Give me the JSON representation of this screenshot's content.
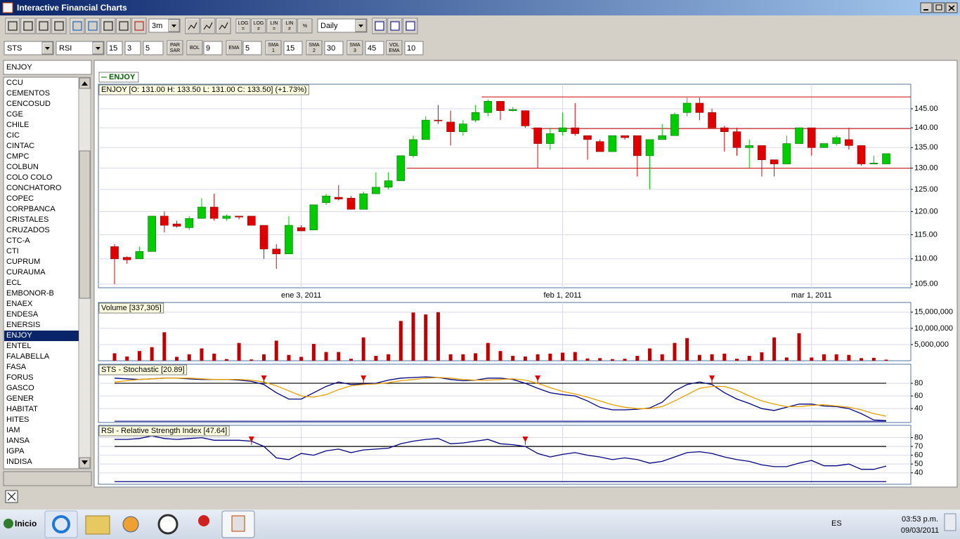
{
  "window": {
    "title": "Interactive Financial Charts"
  },
  "toolbar": {
    "period": "3m",
    "interval": "Daily",
    "scale_buttons": [
      [
        "LOG",
        "="
      ],
      [
        "LOG",
        "≠"
      ],
      [
        "LIN",
        "="
      ],
      [
        "LIN",
        "≠"
      ],
      [
        "%"
      ]
    ]
  },
  "indicator_bar": {
    "oscillator_1": "STS",
    "oscillator_2": "RSI",
    "sts_params": [
      "15",
      "3",
      "5"
    ],
    "par_sar": [
      "PAR",
      "SAR"
    ],
    "bol": [
      "BOL"
    ],
    "bol_param": "9",
    "ema": [
      "EMA"
    ],
    "ema_param": "5",
    "sma1": [
      "SMA",
      "1"
    ],
    "sma1_param": "15",
    "sma2": [
      "SMA",
      "2"
    ],
    "sma2_param": "30",
    "sma3": [
      "SMA",
      "3"
    ],
    "sma3_param": "45",
    "vol_ema": [
      "VOL",
      "EMA"
    ],
    "vol_ema_param": "10"
  },
  "symbol_list": {
    "selected": "ENJOY",
    "selected_index": 24,
    "items": [
      "CCU",
      "CEMENTOS",
      "CENCOSUD",
      "CGE",
      "CHILE",
      "CIC",
      "CINTAC",
      "CMPC",
      "COLBUN",
      "COLO COLO",
      "CONCHATORO",
      "COPEC",
      "CORPBANCA",
      "CRISTALES",
      "CRUZADOS",
      "CTC-A",
      "CTI",
      "CUPRUM",
      "CURAUMA",
      "ECL",
      "EMBONOR-B",
      "ENAEX",
      "ENDESA",
      "ENERSIS",
      "ENJOY",
      "ENTEL",
      "FALABELLA",
      "FASA",
      "FORUS",
      "GASCO",
      "GENER",
      "HABITAT",
      "HITES",
      "IAM",
      "IANSA",
      "IGPA",
      "INDISA"
    ]
  },
  "chart_data": [
    {
      "type": "candlestick",
      "legend": "ENJOY",
      "title": "ENJOY [O: 131.00  H: 133.50  L: 131.00  C: 133.50] (+1.73%)",
      "categories": [
        null,
        null,
        null,
        null,
        null,
        null,
        null,
        null,
        null,
        null,
        null,
        null,
        null,
        null,
        null,
        "ene 3, 2011",
        null,
        null,
        null,
        null,
        null,
        null,
        null,
        null,
        null,
        null,
        null,
        null,
        null,
        null,
        null,
        null,
        null,
        null,
        null,
        null,
        "feb 1, 2011",
        null,
        null,
        null,
        null,
        null,
        null,
        null,
        null,
        null,
        null,
        null,
        null,
        null,
        null,
        null,
        null,
        null,
        null,
        null,
        "mar 1, 2011",
        null,
        null,
        null,
        null,
        null,
        null
      ],
      "open": [
        112.5,
        110.3,
        110,
        111.5,
        119,
        117.3,
        116.5,
        118.5,
        121,
        118.5,
        119,
        119,
        117,
        112,
        111,
        116.5,
        116,
        122,
        123.2,
        123,
        120.5,
        124,
        125.5,
        127,
        133,
        137,
        142,
        141.5,
        139,
        142,
        144,
        147,
        144.5,
        144.5,
        140,
        136,
        139,
        140,
        138,
        136.5,
        134,
        138,
        138,
        133,
        137,
        138,
        144,
        146.5,
        144,
        140,
        139,
        135,
        135.5,
        132,
        131,
        136,
        140,
        135,
        136,
        137,
        135.5,
        131,
        131
      ],
      "high": [
        113,
        110.5,
        112.5,
        119,
        120,
        118,
        119,
        123,
        124,
        119.3,
        119,
        119,
        117,
        113,
        119,
        117,
        121.5,
        124,
        126,
        123.5,
        124.5,
        129,
        129,
        133,
        138,
        143,
        146,
        144.5,
        142,
        146,
        147.5,
        147,
        145.5,
        144.5,
        140,
        140,
        144,
        146.5,
        138,
        137,
        138,
        138,
        138,
        137,
        141,
        144,
        148,
        148,
        145,
        140.5,
        140,
        137,
        135.5,
        132,
        138,
        140,
        140,
        136,
        138,
        140,
        135.5,
        133,
        133.5
      ],
      "low": [
        105,
        109,
        110,
        111.5,
        115.5,
        116.5,
        116,
        118.5,
        118,
        118,
        118.3,
        117,
        110,
        108,
        111,
        115.8,
        116,
        121.5,
        122.5,
        120.5,
        120.5,
        124,
        125,
        127,
        132.5,
        137,
        141,
        135.5,
        138,
        141.5,
        143,
        142,
        144.3,
        140,
        130,
        134.5,
        138,
        138,
        132,
        134,
        134,
        137,
        128,
        125,
        137,
        138,
        143,
        142,
        140,
        134,
        133,
        130,
        128,
        128,
        131,
        136,
        133,
        135,
        135.5,
        134.5,
        130.5,
        131,
        131
      ],
      "close": [
        110,
        109.8,
        111.5,
        119,
        117,
        116.8,
        118.5,
        121,
        118.5,
        119,
        118.8,
        117,
        112,
        111,
        117,
        115.8,
        121.5,
        123.5,
        122.8,
        120.5,
        124,
        125.5,
        127,
        133,
        137,
        142,
        141.8,
        139,
        141,
        144,
        147,
        144.5,
        144.8,
        140.5,
        136,
        138.5,
        140,
        138.5,
        137,
        134,
        138,
        137.5,
        133,
        137,
        138,
        143.5,
        146.5,
        144,
        140,
        139,
        135,
        135.5,
        132,
        131,
        136,
        140,
        135,
        136,
        137.5,
        135.5,
        131,
        131.2,
        133.5
      ],
      "up_color": "#00cc00",
      "down_color": "#e00000",
      "log": true,
      "ylim": [
        104.3,
        151.7
      ],
      "yticks": [
        {
          "value": 105,
          "label": "105.00"
        },
        {
          "value": 110,
          "label": "110.00"
        },
        {
          "value": 115,
          "label": "115.00"
        },
        {
          "value": 120,
          "label": "120.00"
        },
        {
          "value": 125,
          "label": "125.00"
        },
        {
          "value": 130,
          "label": "130.00"
        },
        {
          "value": 135,
          "label": "135.00"
        },
        {
          "value": 140,
          "label": "140.00"
        },
        {
          "value": 145,
          "label": "145.00"
        }
      ],
      "grid": true,
      "levels": [
        {
          "value": 148.2,
          "from": 30
        },
        {
          "value": 139.8,
          "from": 34
        },
        {
          "value": 129.95,
          "from": 24
        }
      ],
      "level_color": "#cc0000"
    },
    {
      "type": "bar",
      "title": "Volume [337,305]",
      "values": [
        2300000,
        1300000,
        3000000,
        4200000,
        8800000,
        1200000,
        2000000,
        3800000,
        2200000,
        500000,
        5500000,
        400000,
        2000000,
        6200000,
        1800000,
        1200000,
        5200000,
        2700000,
        2700000,
        600000,
        7200000,
        1500000,
        2000000,
        12300000,
        14900000,
        14300000,
        15000000,
        2000000,
        2000000,
        2300000,
        5500000,
        3000000,
        1500000,
        1300000,
        2000000,
        2200000,
        2500000,
        2700000,
        700000,
        800000,
        500000,
        600000,
        1500000,
        3800000,
        2000000,
        5500000,
        7000000,
        1800000,
        2000000,
        2200000,
        600000,
        1500000,
        2600000,
        7200000,
        1000000,
        8500000,
        1000000,
        2000000,
        2000000,
        1800000,
        800000,
        900000,
        337305
      ],
      "color": "#c00000",
      "ylim": [
        0,
        18000000
      ],
      "yticks": [
        {
          "value": 5000000,
          "label": "5,000,000"
        },
        {
          "value": 10000000,
          "label": "10,000,000"
        },
        {
          "value": 15000000,
          "label": "15,000,000"
        }
      ],
      "grid": true
    },
    {
      "type": "line",
      "title": "STS - Stochastic [20.89]",
      "series": [
        {
          "color": "#000080",
          "values": [
            88,
            87,
            86,
            87,
            88,
            88,
            87,
            86,
            86,
            86,
            85,
            83,
            78,
            65,
            55,
            55,
            65,
            75,
            82,
            78,
            79,
            80,
            85,
            88,
            89,
            90,
            89,
            86,
            84,
            85,
            88,
            88,
            86,
            80,
            72,
            65,
            62,
            60,
            52,
            42,
            38,
            38,
            39,
            41,
            50,
            68,
            78,
            82,
            78,
            65,
            55,
            48,
            40,
            37,
            42,
            47,
            47,
            44,
            43,
            40,
            32,
            22,
            20.89
          ]
        },
        {
          "color": "#e8a000",
          "values": [
            82,
            84,
            86,
            87,
            88,
            88,
            88,
            87,
            86,
            86,
            86,
            85,
            82,
            76,
            68,
            60,
            58,
            62,
            70,
            76,
            78,
            79,
            81,
            84,
            86,
            88,
            89,
            88,
            86,
            85,
            85,
            86,
            87,
            85,
            80,
            73,
            67,
            63,
            58,
            52,
            46,
            42,
            40,
            40,
            43,
            52,
            62,
            72,
            75,
            75,
            69,
            60,
            52,
            47,
            43,
            43,
            45,
            46,
            44,
            42,
            38,
            32,
            28
          ]
        }
      ],
      "ylim": [
        18,
        110
      ],
      "yticks": [
        40,
        60,
        80
      ],
      "grid": true,
      "reference_lines": [
        {
          "value": 80,
          "color": "#000000"
        },
        {
          "value": 20,
          "color": "#000080"
        }
      ],
      "markers": [
        12,
        20,
        34,
        48
      ],
      "marker_color": "#e00000"
    },
    {
      "type": "line",
      "title": "RSI - Relative Strength Index [47.64]",
      "series": [
        {
          "color": "#000080",
          "values": [
            78,
            78,
            79,
            82,
            79,
            78,
            79,
            80,
            77,
            77,
            77,
            76,
            70,
            57,
            55,
            62,
            60,
            65,
            67,
            63,
            66,
            67,
            68,
            73,
            76,
            78,
            79,
            73,
            74,
            76,
            78,
            73,
            72,
            70,
            62,
            58,
            61,
            63,
            60,
            58,
            55,
            57,
            55,
            51,
            53,
            58,
            63,
            64,
            62,
            58,
            55,
            53,
            49,
            47,
            47,
            51,
            54,
            48,
            48,
            50,
            44,
            44,
            47.64
          ]
        }
      ],
      "ylim": [
        27,
        94
      ],
      "yticks": [
        40,
        50,
        60,
        70,
        80
      ],
      "grid": true,
      "reference_lines": [
        {
          "value": 70,
          "color": "#000000"
        },
        {
          "value": 30,
          "color": "#000080"
        }
      ],
      "markers": [
        11,
        33
      ],
      "marker_color": "#e00000"
    }
  ],
  "taskbar": {
    "start": "Inicio",
    "language": "ES",
    "time": "03:53 p.m.",
    "date": "09/03/2011"
  }
}
